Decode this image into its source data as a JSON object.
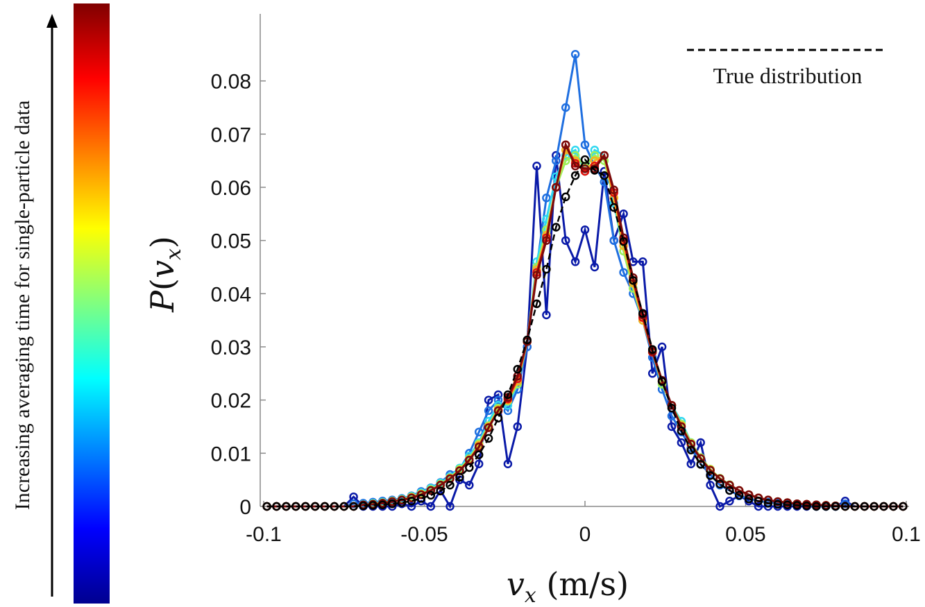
{
  "chart_data": {
    "type": "line",
    "title": "",
    "xlabel": "v_x (m/s)",
    "ylabel": "P(v_x)",
    "xlim": [
      -0.1,
      0.1
    ],
    "ylim": [
      0,
      0.09
    ],
    "xticks": [
      -0.1,
      -0.05,
      0,
      0.05,
      0.1
    ],
    "xtick_labels": [
      "-0.1",
      "-0.05",
      "0",
      "0.05",
      "0.1"
    ],
    "yticks": [
      0,
      0.01,
      0.02,
      0.03,
      0.04,
      0.05,
      0.06,
      0.07,
      0.08
    ],
    "ytick_labels": [
      "0",
      "0.01",
      "0.02",
      "0.03",
      "0.04",
      "0.05",
      "0.06",
      "0.07",
      "0.08"
    ],
    "grid": false,
    "legend": {
      "placement": "top-right",
      "entries": [
        {
          "label": "True distribution",
          "style": "dashed",
          "color": "#000000"
        }
      ]
    },
    "colorbar": {
      "label": "Increasing averaging time for single-particle data",
      "colors": [
        "#00008f",
        "#0000ff",
        "#0080ff",
        "#00ffff",
        "#80ff80",
        "#ffff00",
        "#ff8000",
        "#ff0000",
        "#800000"
      ]
    },
    "x": [
      -0.099,
      -0.096,
      -0.093,
      -0.09,
      -0.087,
      -0.084,
      -0.081,
      -0.078,
      -0.075,
      -0.072,
      -0.069,
      -0.066,
      -0.063,
      -0.06,
      -0.057,
      -0.054,
      -0.051,
      -0.048,
      -0.045,
      -0.042,
      -0.039,
      -0.036,
      -0.033,
      -0.03,
      -0.027,
      -0.024,
      -0.021,
      -0.018,
      -0.015,
      -0.012,
      -0.009,
      -0.006,
      -0.003,
      0.0,
      0.003,
      0.006,
      0.009,
      0.012,
      0.015,
      0.018,
      0.021,
      0.024,
      0.027,
      0.03,
      0.033,
      0.036,
      0.039,
      0.042,
      0.045,
      0.048,
      0.051,
      0.054,
      0.057,
      0.06,
      0.063,
      0.066,
      0.069,
      0.072,
      0.075,
      0.078,
      0.081,
      0.084,
      0.087,
      0.09,
      0.093,
      0.096,
      0.099
    ],
    "series": [
      {
        "color": "#0a1aa8",
        "values": [
          0,
          0,
          0,
          0,
          0,
          0,
          0,
          0,
          0,
          0.0018,
          0,
          0,
          0,
          0,
          0.0005,
          0,
          0.001,
          0,
          0.003,
          0,
          0.005,
          0.004,
          0.008,
          0.02,
          0.021,
          0.008,
          0.015,
          0.03,
          0.064,
          0.036,
          0.066,
          0.05,
          0.046,
          0.052,
          0.045,
          0.063,
          0.05,
          0.055,
          0.046,
          0.046,
          0.025,
          0.03,
          0.015,
          0.012,
          0.008,
          0.012,
          0.004,
          0,
          0.001,
          0.002,
          0.001,
          0,
          0,
          0,
          0,
          0,
          0,
          0,
          0,
          0,
          0.001,
          0,
          0,
          0,
          0,
          0,
          0
        ]
      },
      {
        "color": "#1f6fe0",
        "values": [
          0,
          0,
          0,
          0,
          0,
          0,
          0,
          0,
          0,
          0.0005,
          0.0006,
          0.0008,
          0.001,
          0.0012,
          0.0015,
          0.002,
          0.0028,
          0.0035,
          0.0045,
          0.006,
          0.007,
          0.01,
          0.014,
          0.018,
          0.02,
          0.018,
          0.022,
          0.03,
          0.045,
          0.058,
          0.065,
          0.075,
          0.085,
          0.068,
          0.064,
          0.061,
          0.05,
          0.044,
          0.04,
          0.035,
          0.028,
          0.022,
          0.017,
          0.014,
          0.011,
          0.008,
          0.006,
          0.004,
          0.003,
          0.002,
          0.0015,
          0.001,
          0.0008,
          0.0006,
          0.0005,
          0.0004,
          0.0003,
          0,
          0,
          0,
          0.0005,
          0,
          0,
          0,
          0,
          0,
          0
        ]
      },
      {
        "color": "#2fd8f0",
        "values": [
          0,
          0,
          0,
          0,
          0,
          0,
          0,
          0,
          0,
          0,
          0.0004,
          0.0006,
          0.0008,
          0.001,
          0.0014,
          0.0019,
          0.0026,
          0.0034,
          0.0044,
          0.0056,
          0.0072,
          0.0095,
          0.012,
          0.016,
          0.019,
          0.019,
          0.023,
          0.031,
          0.046,
          0.054,
          0.062,
          0.066,
          0.067,
          0.063,
          0.067,
          0.066,
          0.057,
          0.048,
          0.041,
          0.035,
          0.029,
          0.023,
          0.019,
          0.016,
          0.012,
          0.009,
          0.0068,
          0.0052,
          0.004,
          0.003,
          0.0022,
          0.0016,
          0.0012,
          0.0009,
          0.0007,
          0.0005,
          0.0004,
          0.0003,
          0.0002,
          0.0001,
          0,
          0,
          0,
          0,
          0,
          0,
          0
        ]
      },
      {
        "color": "#9ef05a",
        "values": [
          0,
          0,
          0,
          0,
          0,
          0,
          0,
          0,
          0,
          0,
          0.0003,
          0.0005,
          0.0007,
          0.001,
          0.0013,
          0.0018,
          0.0024,
          0.0032,
          0.0042,
          0.0054,
          0.007,
          0.009,
          0.0118,
          0.0152,
          0.0185,
          0.0198,
          0.023,
          0.031,
          0.045,
          0.052,
          0.06,
          0.065,
          0.066,
          0.064,
          0.066,
          0.065,
          0.058,
          0.048,
          0.041,
          0.035,
          0.029,
          0.023,
          0.019,
          0.0155,
          0.012,
          0.0092,
          0.007,
          0.0053,
          0.0041,
          0.003,
          0.0022,
          0.0016,
          0.0012,
          0.0009,
          0.0007,
          0.0005,
          0.0004,
          0.0003,
          0.0002,
          0.0001,
          0,
          0,
          0,
          0,
          0,
          0,
          0
        ]
      },
      {
        "color": "#f8b020",
        "values": [
          0,
          0,
          0,
          0,
          0,
          0,
          0,
          0,
          0,
          0,
          0.0003,
          0.0004,
          0.0006,
          0.0009,
          0.0012,
          0.0017,
          0.0023,
          0.003,
          0.004,
          0.0053,
          0.0068,
          0.0088,
          0.0115,
          0.015,
          0.0182,
          0.02,
          0.0235,
          0.031,
          0.0445,
          0.051,
          0.06,
          0.067,
          0.065,
          0.063,
          0.065,
          0.066,
          0.058,
          0.049,
          0.042,
          0.035,
          0.029,
          0.0235,
          0.019,
          0.0152,
          0.0118,
          0.009,
          0.0069,
          0.0052,
          0.004,
          0.003,
          0.0022,
          0.0016,
          0.0012,
          0.0009,
          0.0007,
          0.0005,
          0.0004,
          0.0003,
          0.0002,
          0.0001,
          0,
          0,
          0,
          0,
          0,
          0,
          0
        ]
      },
      {
        "color": "#e01010",
        "values": [
          0,
          0,
          0,
          0,
          0,
          0,
          0,
          0,
          0,
          0,
          0.0003,
          0.0004,
          0.0006,
          0.0009,
          0.0012,
          0.0016,
          0.0022,
          0.003,
          0.004,
          0.0052,
          0.0067,
          0.0087,
          0.0112,
          0.0148,
          0.018,
          0.0202,
          0.024,
          0.031,
          0.044,
          0.0505,
          0.06,
          0.068,
          0.0645,
          0.063,
          0.064,
          0.066,
          0.059,
          0.05,
          0.0425,
          0.0355,
          0.029,
          0.0235,
          0.019,
          0.015,
          0.0117,
          0.009,
          0.0068,
          0.0052,
          0.004,
          0.003,
          0.0022,
          0.0016,
          0.0012,
          0.0009,
          0.0007,
          0.0005,
          0.0004,
          0.0003,
          0.0002,
          0.0001,
          0,
          0,
          0,
          0,
          0,
          0,
          0
        ]
      },
      {
        "color": "#7a0a0a",
        "values": [
          0,
          0,
          0,
          0,
          0,
          0,
          0,
          0,
          0,
          0,
          0.0003,
          0.0004,
          0.0006,
          0.0009,
          0.0012,
          0.0016,
          0.0022,
          0.003,
          0.004,
          0.0052,
          0.0067,
          0.0087,
          0.0112,
          0.0148,
          0.018,
          0.0205,
          0.0245,
          0.031,
          0.0435,
          0.05,
          0.06,
          0.068,
          0.064,
          0.0635,
          0.0635,
          0.066,
          0.0595,
          0.0505,
          0.043,
          0.036,
          0.0292,
          0.0237,
          0.019,
          0.015,
          0.0117,
          0.009,
          0.0068,
          0.0052,
          0.004,
          0.003,
          0.0022,
          0.0016,
          0.0012,
          0.0009,
          0.0007,
          0.0005,
          0.0004,
          0.0003,
          0.0002,
          0.0001,
          0,
          0,
          0,
          0,
          0,
          0,
          0
        ]
      },
      {
        "color": "#000000",
        "values": [
          0,
          0,
          0,
          0,
          0,
          0,
          0,
          0,
          0,
          0,
          0.0001,
          0.0002,
          0.0003,
          0.0005,
          0.0007,
          0.001,
          0.0015,
          0.0021,
          0.0029,
          0.004,
          0.0055,
          0.0073,
          0.0097,
          0.0128,
          0.0166,
          0.021,
          0.0258,
          0.0313,
          0.0381,
          0.0446,
          0.0525,
          0.0582,
          0.0622,
          0.0652,
          0.0632,
          0.0622,
          0.0562,
          0.0498,
          0.0425,
          0.0363,
          0.0295,
          0.0235,
          0.0185,
          0.0142,
          0.0106,
          0.0079,
          0.0058,
          0.0042,
          0.003,
          0.0021,
          0.0014,
          0.001,
          0.0006,
          0.0004,
          0.0003,
          0.0002,
          0.0001,
          0,
          0,
          0,
          0,
          0,
          0,
          0,
          0,
          0,
          0
        ]
      }
    ]
  }
}
